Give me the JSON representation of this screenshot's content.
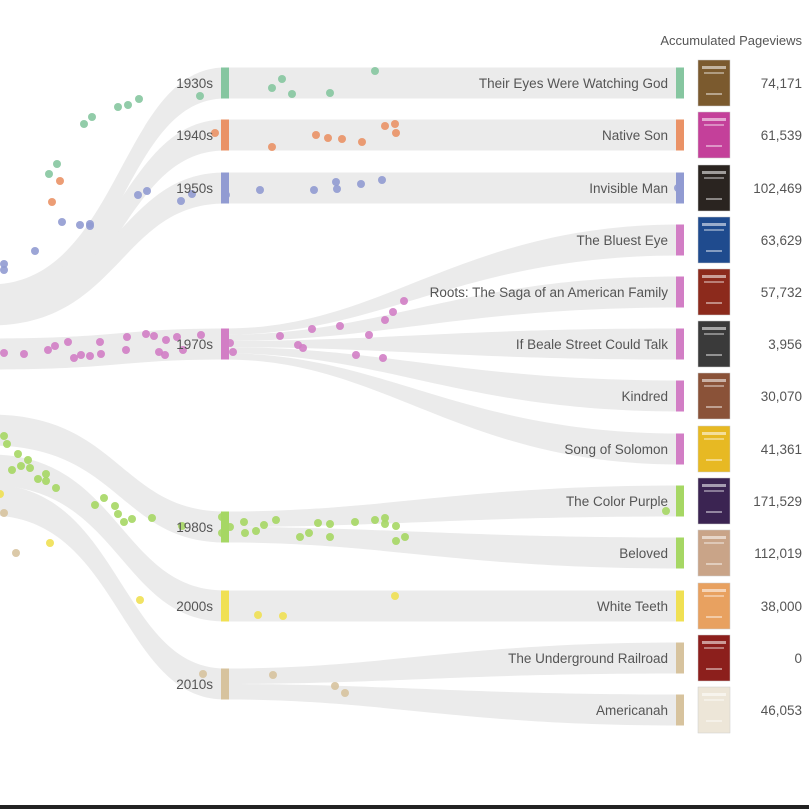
{
  "chart_data": {
    "type": "sankey",
    "value_header": "Accumulated Pageviews",
    "decades": [
      {
        "label": "1930s",
        "color": "#86c6a0"
      },
      {
        "label": "1940s",
        "color": "#ea9266"
      },
      {
        "label": "1950s",
        "color": "#919bd2"
      },
      {
        "label": "1970s",
        "color": "#d27ec5"
      },
      {
        "label": "1980s",
        "color": "#a6d764"
      },
      {
        "label": "2000s",
        "color": "#f0e053"
      },
      {
        "label": "2010s",
        "color": "#d7c39e"
      }
    ],
    "books": [
      {
        "title": "Their Eyes Were Watching God",
        "decade": "1930s",
        "pageviews": "74,171",
        "cover": "#7b5a2e"
      },
      {
        "title": "Native Son",
        "decade": "1940s",
        "pageviews": "61,539",
        "cover": "#c4409a"
      },
      {
        "title": "Invisible Man",
        "decade": "1950s",
        "pageviews": "102,469",
        "cover": "#2a2420"
      },
      {
        "title": "The Bluest Eye",
        "decade": "1970s",
        "pageviews": "63,629",
        "cover": "#1f4b8e"
      },
      {
        "title": "Roots: The Saga of an American Family",
        "decade": "1970s",
        "pageviews": "57,732",
        "cover": "#8c2a1c"
      },
      {
        "title": "If Beale Street Could Talk",
        "decade": "1970s",
        "pageviews": "3,956",
        "cover": "#3a3a3a"
      },
      {
        "title": "Kindred",
        "decade": "1970s",
        "pageviews": "30,070",
        "cover": "#8a5238"
      },
      {
        "title": "Song of Solomon",
        "decade": "1970s",
        "pageviews": "41,361",
        "cover": "#e7b923"
      },
      {
        "title": "The Color Purple",
        "decade": "1980s",
        "pageviews": "171,529",
        "cover": "#3b2452"
      },
      {
        "title": "Beloved",
        "decade": "1980s",
        "pageviews": "112,019",
        "cover": "#c9a488"
      },
      {
        "title": "White Teeth",
        "decade": "2000s",
        "pageviews": "38,000",
        "cover": "#e8a160"
      },
      {
        "title": "The Underground Railroad",
        "decade": "2010s",
        "pageviews": "0",
        "cover": "#8c1f1c"
      },
      {
        "title": "Americanah",
        "decade": "2010s",
        "pageviews": "46,053",
        "cover": "#ede6d8"
      }
    ]
  }
}
